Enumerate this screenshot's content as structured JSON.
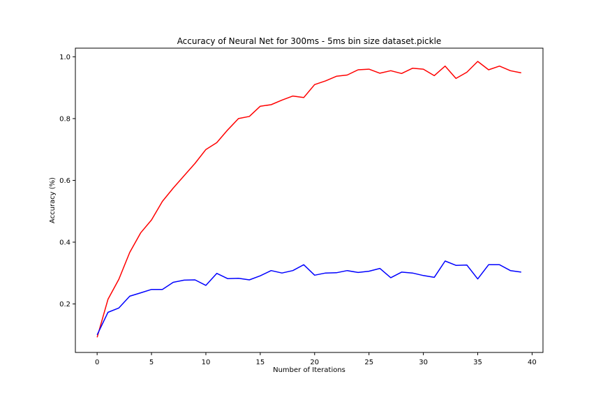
{
  "chart_data": {
    "type": "line",
    "title": "Accuracy of Neural Net for 300ms - 5ms bin size dataset.pickle",
    "xlabel": "Number of Iterations",
    "ylabel": "Accuracy (%)",
    "xlim": [
      -2,
      41
    ],
    "ylim": [
      0.043,
      1.028
    ],
    "xticks": [
      0,
      5,
      10,
      15,
      20,
      25,
      30,
      35,
      40
    ],
    "yticks": [
      0.2,
      0.4,
      0.6,
      0.8,
      1.0
    ],
    "ytick_labels": [
      "0.2",
      "0.4",
      "0.6",
      "0.8",
      "1.0"
    ],
    "grid": false,
    "legend": "none",
    "x": [
      0,
      1,
      2,
      3,
      4,
      5,
      6,
      7,
      8,
      9,
      10,
      11,
      12,
      13,
      14,
      15,
      16,
      17,
      18,
      19,
      20,
      21,
      22,
      23,
      24,
      25,
      26,
      27,
      28,
      29,
      30,
      31,
      32,
      33,
      34,
      35,
      36,
      37,
      38,
      39
    ],
    "series": [
      {
        "color": "#ff0000",
        "values": [
          0.092,
          0.215,
          0.28,
          0.367,
          0.43,
          0.472,
          0.532,
          0.575,
          0.615,
          0.655,
          0.7,
          0.722,
          0.763,
          0.8,
          0.807,
          0.84,
          0.845,
          0.86,
          0.873,
          0.868,
          0.91,
          0.922,
          0.937,
          0.941,
          0.958,
          0.96,
          0.947,
          0.955,
          0.946,
          0.963,
          0.96,
          0.939,
          0.97,
          0.93,
          0.95,
          0.985,
          0.958,
          0.97,
          0.955,
          0.948
        ]
      },
      {
        "color": "#0000ff",
        "values": [
          0.1,
          0.173,
          0.187,
          0.225,
          0.236,
          0.247,
          0.247,
          0.27,
          0.277,
          0.278,
          0.26,
          0.299,
          0.282,
          0.283,
          0.278,
          0.291,
          0.308,
          0.3,
          0.308,
          0.327,
          0.293,
          0.3,
          0.301,
          0.308,
          0.302,
          0.306,
          0.315,
          0.285,
          0.303,
          0.3,
          0.292,
          0.286,
          0.339,
          0.325,
          0.326,
          0.281,
          0.327,
          0.327,
          0.308,
          0.303
        ]
      }
    ]
  }
}
